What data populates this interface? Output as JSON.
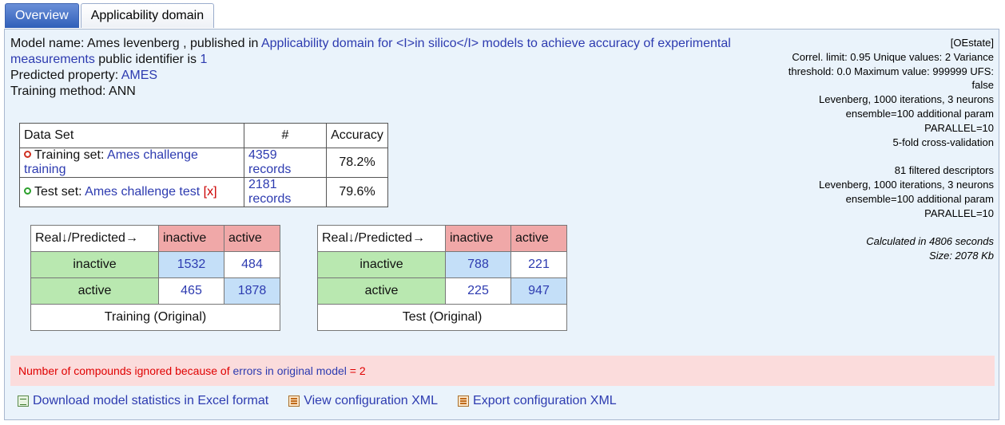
{
  "tabs": [
    {
      "label": "Overview",
      "active": true
    },
    {
      "label": "Applicability domain",
      "active": false
    }
  ],
  "model": {
    "name_prefix": "Model name: Ames levenberg  , published in ",
    "paper_link": "Applicability domain for <I>in silico</I> models to achieve accuracy of experimental measurements",
    "identifier_prefix": " public identifier is ",
    "identifier": "1",
    "property_prefix": "Predicted property: ",
    "property": "AMES",
    "method_line": "Training method: ANN"
  },
  "config_info": {
    "lines": [
      "[OEstate]",
      "Correl. limit: 0.95 Unique values: 2 Variance",
      "threshold: 0.0 Maximum value: 999999 UFS:",
      "false",
      "Levenberg, 1000 iterations, 3 neurons",
      "ensemble=100 additional param",
      "PARALLEL=10",
      "5-fold cross-validation",
      "",
      "81 filtered descriptors",
      "Levenberg, 1000 iterations, 3 neurons",
      "ensemble=100 additional param",
      "PARALLEL=10",
      ""
    ],
    "calculated": "Calculated in 4806 seconds",
    "size": "Size: 2078 Kb"
  },
  "datasets": {
    "headers": [
      "Data Set",
      "#",
      "Accuracy"
    ],
    "training": {
      "prefix": "Training set: ",
      "name": "Ames challenge training",
      "records": "4359 records",
      "accuracy": "78.2%"
    },
    "test": {
      "prefix": "Test set: ",
      "name": "Ames challenge test",
      "delete": "[x]",
      "records": "2181 records",
      "accuracy": "79.6%"
    }
  },
  "matrices": {
    "training": {
      "header": [
        "Real↓/Predicted→",
        "inactive",
        "active"
      ],
      "rows": [
        {
          "label": "inactive",
          "values": [
            "1532",
            "484"
          ]
        },
        {
          "label": "active",
          "values": [
            "465",
            "1878"
          ]
        }
      ],
      "caption": "Training (Original)"
    },
    "test": {
      "header": [
        "Real↓/Predicted→",
        "inactive",
        "active"
      ],
      "rows": [
        {
          "label": "inactive",
          "values": [
            "788",
            "221"
          ]
        },
        {
          "label": "active",
          "values": [
            "225",
            "947"
          ]
        }
      ],
      "caption": "Test (Original)"
    }
  },
  "warning": {
    "prefix": "Number of compounds ignored because of ",
    "link": "errors in original model",
    "suffix": " = 2"
  },
  "actions": {
    "download_excel": "Download model statistics in Excel format",
    "view_xml": "View configuration XML",
    "export_xml": "Export configuration XML"
  },
  "colors": {
    "link": "#2d3bb0",
    "panel_bg": "#eaf3fb",
    "warning_bg": "#fbdcdc",
    "warning_text": "#e00000",
    "predicted_header": "#f0a8a8",
    "real_label": "#b9e8b0",
    "diagonal": "#c4dff8"
  }
}
